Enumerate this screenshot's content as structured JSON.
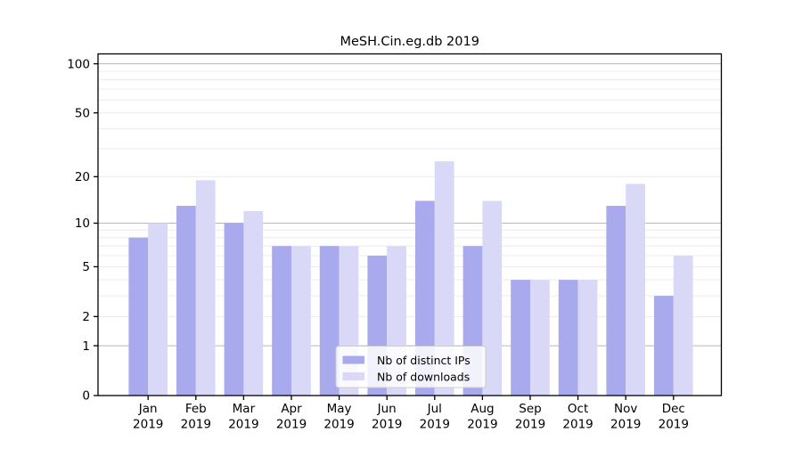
{
  "title": "MeSH.Cin.eg.db 2019",
  "colors": {
    "ips_bar": "#a9a9ee",
    "downloads_bar": "#d9d9f7",
    "grid_major": "#b8b8b8",
    "grid_minor": "#ececec",
    "axis": "#000000",
    "legend_border": "#cccccc",
    "legend_background": "#ffffff"
  },
  "legend": {
    "items": [
      {
        "label": "Nb of distinct IPs",
        "series": "ips"
      },
      {
        "label": "Nb of downloads",
        "series": "downloads"
      }
    ]
  },
  "chart_data": {
    "type": "bar",
    "title": "MeSH.Cin.eg.db 2019",
    "categories": [
      "Jan",
      "Feb",
      "Mar",
      "Apr",
      "May",
      "Jun",
      "Jul",
      "Aug",
      "Sep",
      "Oct",
      "Nov",
      "Dec"
    ],
    "year": "2019",
    "series": [
      {
        "name": "Nb of distinct IPs",
        "values": [
          8,
          13,
          10,
          7,
          7,
          6,
          14,
          7,
          4,
          4,
          13,
          3
        ]
      },
      {
        "name": "Nb of downloads",
        "values": [
          10,
          19,
          12,
          7,
          7,
          7,
          25,
          14,
          4,
          4,
          18,
          6
        ]
      }
    ],
    "xlabel": "",
    "ylabel": "",
    "yscale": "log1p",
    "ylim": [
      0,
      114
    ],
    "y_ticks": [
      0,
      1,
      2,
      5,
      10,
      20,
      50,
      100
    ],
    "y_major_gridlines": [
      1,
      10,
      100
    ],
    "y_minor_gridlines": [
      2,
      3,
      4,
      5,
      6,
      7,
      8,
      9,
      20,
      30,
      40,
      50,
      60,
      70,
      80,
      90
    ],
    "grid": true,
    "legend_position": "lower-center-inside"
  }
}
